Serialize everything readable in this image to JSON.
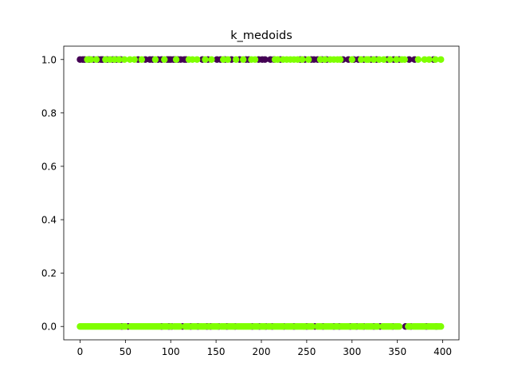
{
  "chart_data": {
    "type": "scatter",
    "title": "k_medoids",
    "xlabel": "",
    "ylabel": "",
    "xlim": [
      -18,
      418
    ],
    "ylim": [
      -0.05,
      1.05
    ],
    "xticks": [
      0,
      50,
      100,
      150,
      200,
      250,
      300,
      350,
      400
    ],
    "yticks": [
      0.0,
      0.2,
      0.4,
      0.6,
      0.8,
      1.0
    ],
    "xtick_labels": [
      "0",
      "50",
      "100",
      "150",
      "200",
      "250",
      "300",
      "350",
      "400"
    ],
    "ytick_labels": [
      "0.0",
      "0.2",
      "0.4",
      "0.6",
      "0.8",
      "1.0"
    ],
    "grid": false,
    "legend": "none",
    "colors": {
      "cluster_a": "#440154",
      "cluster_b": "#7fff00"
    },
    "series": [
      {
        "cluster": "a",
        "color": "#440154",
        "x": [
          0,
          3,
          5,
          10,
          15,
          20,
          23,
          25,
          30,
          36,
          40,
          45,
          64,
          72,
          77,
          80,
          86,
          90,
          96,
          98,
          100,
          103,
          105,
          108,
          111,
          115,
          117,
          135,
          141,
          151,
          155,
          160,
          167,
          176,
          183,
          186,
          197,
          201,
          204,
          210,
          214,
          221,
          243,
          248,
          255,
          258,
          262,
          267,
          272,
          290,
          296,
          302,
          307,
          313,
          321,
          327,
          339,
          346,
          352,
          363,
          369,
          390,
          46,
          53,
          90,
          98,
          101,
          113,
          122,
          130,
          140,
          144,
          153,
          162,
          171,
          190,
          198,
          205,
          212,
          225,
          236,
          250,
          259,
          268,
          280,
          286,
          298,
          305,
          313,
          324,
          331,
          345,
          359,
          365,
          382,
          393
        ],
        "y": [
          1,
          1,
          1,
          1,
          1,
          1,
          1,
          1,
          1,
          1,
          1,
          1,
          1,
          1,
          1,
          1,
          1,
          1,
          1,
          1,
          1,
          1,
          1,
          1,
          1,
          1,
          1,
          1,
          1,
          1,
          1,
          1,
          1,
          1,
          1,
          1,
          1,
          1,
          1,
          1,
          1,
          1,
          1,
          1,
          1,
          1,
          1,
          1,
          1,
          1,
          1,
          1,
          1,
          1,
          1,
          1,
          1,
          1,
          1,
          1,
          1,
          1,
          0,
          0,
          0,
          0,
          0,
          0,
          0,
          0,
          0,
          0,
          0,
          0,
          0,
          0,
          0,
          0,
          0,
          0,
          0,
          0,
          0,
          0,
          0,
          0,
          0,
          0,
          0,
          0,
          0,
          0,
          0,
          0,
          0,
          0
        ]
      },
      {
        "cluster": "b",
        "color": "#7fff00",
        "x": [
          8,
          12,
          18,
          28,
          33,
          38,
          43,
          49,
          55,
          60,
          68,
          83,
          93,
          106,
          120,
          124,
          129,
          138,
          145,
          158,
          163,
          172,
          180,
          189,
          193,
          215,
          218,
          224,
          228,
          232,
          236,
          240,
          245,
          252,
          265,
          270,
          276,
          280,
          284,
          287,
          300,
          310,
          316,
          318,
          324,
          330,
          335,
          342,
          349,
          355,
          358,
          373,
          380,
          385,
          392,
          398,
          0,
          2,
          4,
          6,
          8,
          10,
          12,
          14,
          16,
          18,
          20,
          22,
          24,
          26,
          28,
          30,
          32,
          34,
          36,
          38,
          40,
          42,
          44,
          48,
          50,
          56,
          58,
          60,
          62,
          64,
          66,
          68,
          70,
          72,
          74,
          76,
          78,
          80,
          82,
          84,
          86,
          88,
          92,
          94,
          96,
          100,
          104,
          106,
          108,
          110,
          116,
          118,
          120,
          124,
          126,
          128,
          132,
          134,
          136,
          138,
          142,
          146,
          148,
          150,
          152,
          156,
          158,
          160,
          164,
          166,
          168,
          170,
          174,
          176,
          178,
          180,
          182,
          184,
          186,
          188,
          192,
          194,
          196,
          200,
          202,
          204,
          208,
          210,
          214,
          216,
          218,
          220,
          222,
          224,
          228,
          230,
          232,
          234,
          238,
          240,
          242,
          244,
          246,
          248,
          252,
          254,
          256,
          262,
          264,
          266,
          270,
          272,
          274,
          276,
          278,
          282,
          284,
          288,
          290,
          292,
          294,
          296,
          300,
          302,
          304,
          308,
          310,
          312,
          316,
          318,
          320,
          322,
          326,
          328,
          334,
          336,
          338,
          340,
          342,
          344,
          348,
          350,
          352,
          362,
          364,
          368,
          370,
          372,
          374,
          376,
          378,
          380,
          384,
          386,
          388,
          390,
          392,
          394,
          396,
          398
        ],
        "y": [
          1,
          1,
          1,
          1,
          1,
          1,
          1,
          1,
          1,
          1,
          1,
          1,
          1,
          1,
          1,
          1,
          1,
          1,
          1,
          1,
          1,
          1,
          1,
          1,
          1,
          1,
          1,
          1,
          1,
          1,
          1,
          1,
          1,
          1,
          1,
          1,
          1,
          1,
          1,
          1,
          1,
          1,
          1,
          1,
          1,
          1,
          1,
          1,
          1,
          1,
          1,
          1,
          1,
          1,
          1,
          1,
          0,
          0,
          0,
          0,
          0,
          0,
          0,
          0,
          0,
          0,
          0,
          0,
          0,
          0,
          0,
          0,
          0,
          0,
          0,
          0,
          0,
          0,
          0,
          0,
          0,
          0,
          0,
          0,
          0,
          0,
          0,
          0,
          0,
          0,
          0,
          0,
          0,
          0,
          0,
          0,
          0,
          0,
          0,
          0,
          0,
          0,
          0,
          0,
          0,
          0,
          0,
          0,
          0,
          0,
          0,
          0,
          0,
          0,
          0,
          0,
          0,
          0,
          0,
          0,
          0,
          0,
          0,
          0,
          0,
          0,
          0,
          0,
          0,
          0,
          0,
          0,
          0,
          0,
          0,
          0,
          0,
          0,
          0,
          0,
          0,
          0,
          0,
          0,
          0,
          0,
          0,
          0,
          0,
          0,
          0,
          0,
          0,
          0,
          0,
          0,
          0,
          0,
          0,
          0,
          0,
          0,
          0,
          0,
          0,
          0,
          0,
          0,
          0,
          0,
          0,
          0,
          0,
          0,
          0,
          0,
          0,
          0,
          0,
          0,
          0,
          0,
          0,
          0,
          0,
          0,
          0,
          0,
          0,
          0,
          0,
          0,
          0,
          0,
          0,
          0,
          0,
          0,
          0,
          0,
          0,
          0,
          0,
          0,
          0,
          0,
          0,
          0,
          0,
          0,
          0,
          0,
          0,
          0,
          0,
          0
        ]
      }
    ]
  }
}
